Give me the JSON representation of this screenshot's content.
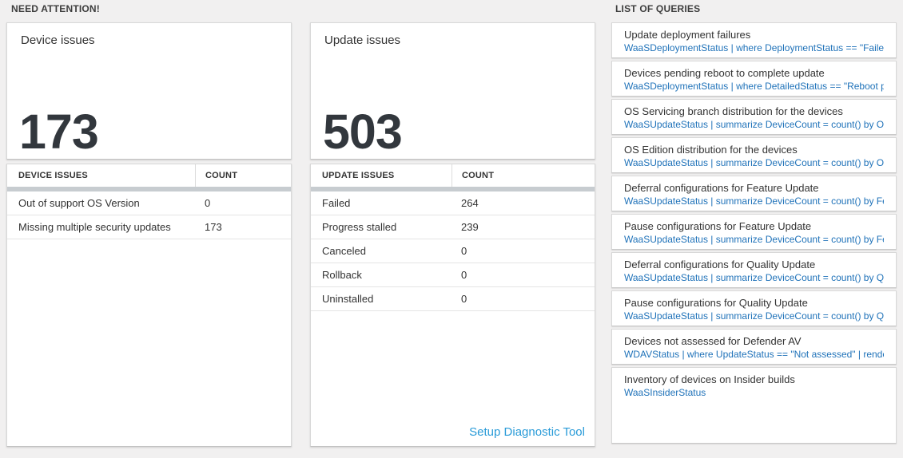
{
  "sections": {
    "need_attention": "NEED ATTENTION!",
    "list_of_queries": "LIST OF QUERIES"
  },
  "device_tile": {
    "title": "Device issues",
    "count": "173"
  },
  "device_table": {
    "headers": [
      "DEVICE ISSUES",
      "COUNT"
    ],
    "rows": [
      {
        "label": "Out of support OS Version",
        "count": "0"
      },
      {
        "label": "Missing multiple security updates",
        "count": "173"
      }
    ]
  },
  "update_tile": {
    "title": "Update issues",
    "count": "503"
  },
  "update_table": {
    "headers": [
      "UPDATE ISSUES",
      "COUNT"
    ],
    "rows": [
      {
        "label": "Failed",
        "count": "264"
      },
      {
        "label": "Progress stalled",
        "count": "239"
      },
      {
        "label": "Canceled",
        "count": "0"
      },
      {
        "label": "Rollback",
        "count": "0"
      },
      {
        "label": "Uninstalled",
        "count": "0"
      }
    ],
    "footer_link": "Setup Diagnostic Tool"
  },
  "queries": [
    {
      "name": "Update deployment failures",
      "query": "WaaSDeploymentStatus | where DeploymentStatus == \"Failed\" |..."
    },
    {
      "name": "Devices pending reboot to complete update",
      "query": "WaaSDeploymentStatus | where DetailedStatus == \"Reboot pend..."
    },
    {
      "name": "OS Servicing branch distribution for the devices",
      "query": "WaaSUpdateStatus | summarize DeviceCount = count() by OSSer..."
    },
    {
      "name": "OS Edition distribution for the devices",
      "query": "WaaSUpdateStatus | summarize DeviceCount = count() by OSEdit..."
    },
    {
      "name": "Deferral configurations for Feature Update",
      "query": "WaaSUpdateStatus | summarize DeviceCount = count() by Featur..."
    },
    {
      "name": "Pause configurations for Feature Update",
      "query": "WaaSUpdateStatus | summarize DeviceCount = count() by Featur..."
    },
    {
      "name": "Deferral configurations for Quality Update",
      "query": "WaaSUpdateStatus | summarize DeviceCount = count() by Qualit..."
    },
    {
      "name": "Pause configurations for Quality Update",
      "query": "WaaSUpdateStatus | summarize DeviceCount = count() by Qualit..."
    },
    {
      "name": "Devices not assessed for Defender AV",
      "query": "WDAVStatus | where UpdateStatus == \"Not assessed\" | render ta..."
    },
    {
      "name": "Inventory of devices on Insider builds",
      "query": "WaaSInsiderStatus"
    }
  ],
  "colors": {
    "page_background": "#f1f0f0",
    "tile_background": "#ffffff",
    "tile_border": "#d8d8d8",
    "query_link_blue": "#1f72b9",
    "footer_link_blue": "#299bd8",
    "big_number": "#32373d",
    "scrollbar_gray": "#c7ccd0"
  }
}
